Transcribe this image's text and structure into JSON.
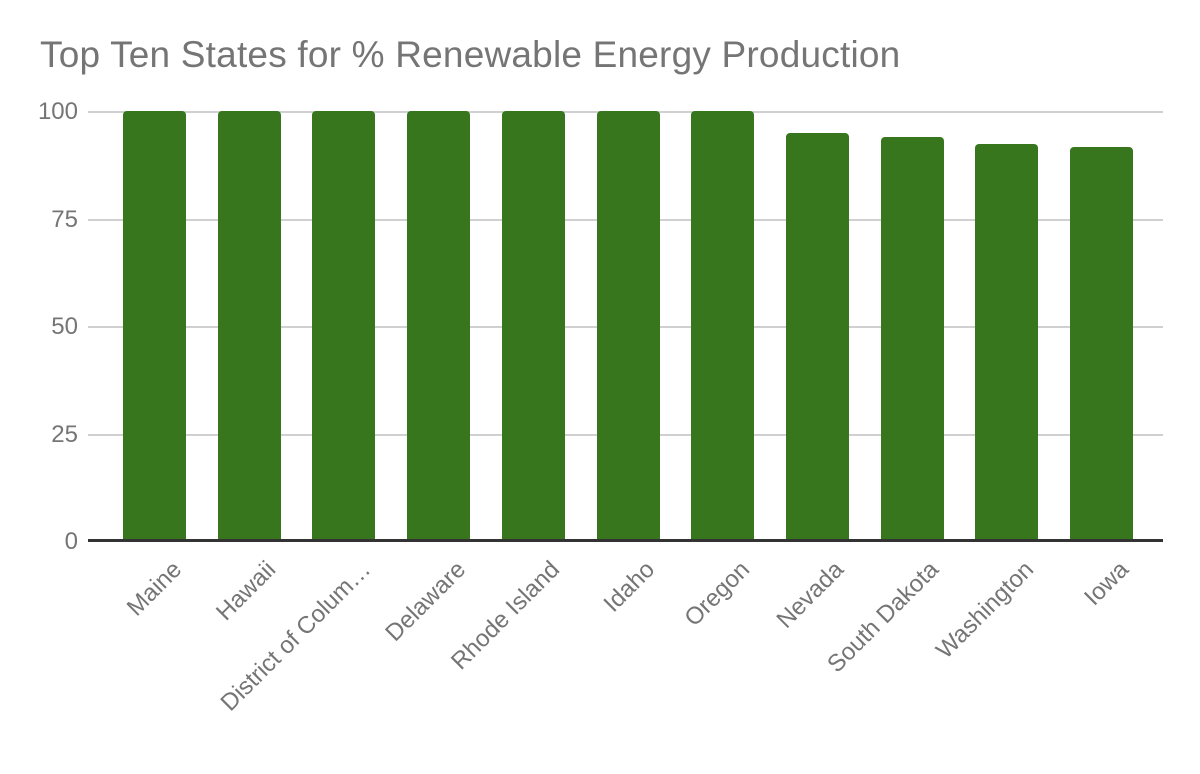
{
  "chart_data": {
    "type": "bar",
    "title": "Top Ten States for % Renewable Energy Production",
    "categories": [
      "Maine",
      "Hawaii",
      "District of Colum…",
      "Delaware",
      "Rhode Island",
      "Idaho",
      "Oregon",
      "Nevada",
      "South Dakota",
      "Washington",
      "Iowa"
    ],
    "values": [
      99.5,
      99.5,
      99.5,
      99.5,
      99.5,
      99.5,
      99.5,
      94.4,
      93.6,
      91.9,
      91.2
    ],
    "xlabel": "",
    "ylabel": "",
    "ylim": [
      0,
      100
    ],
    "yticks": [
      0,
      25,
      50,
      75,
      100
    ],
    "grid": true,
    "legend": "none",
    "x_label_rotation_deg": -45,
    "bar_shape": "rounded-top"
  },
  "colors": {
    "bar": "#38761d",
    "title_text": "#757575",
    "axis_text": "#757575",
    "gridline": "#d0d0d0",
    "axis_line": "#333333",
    "background": "#ffffff"
  }
}
